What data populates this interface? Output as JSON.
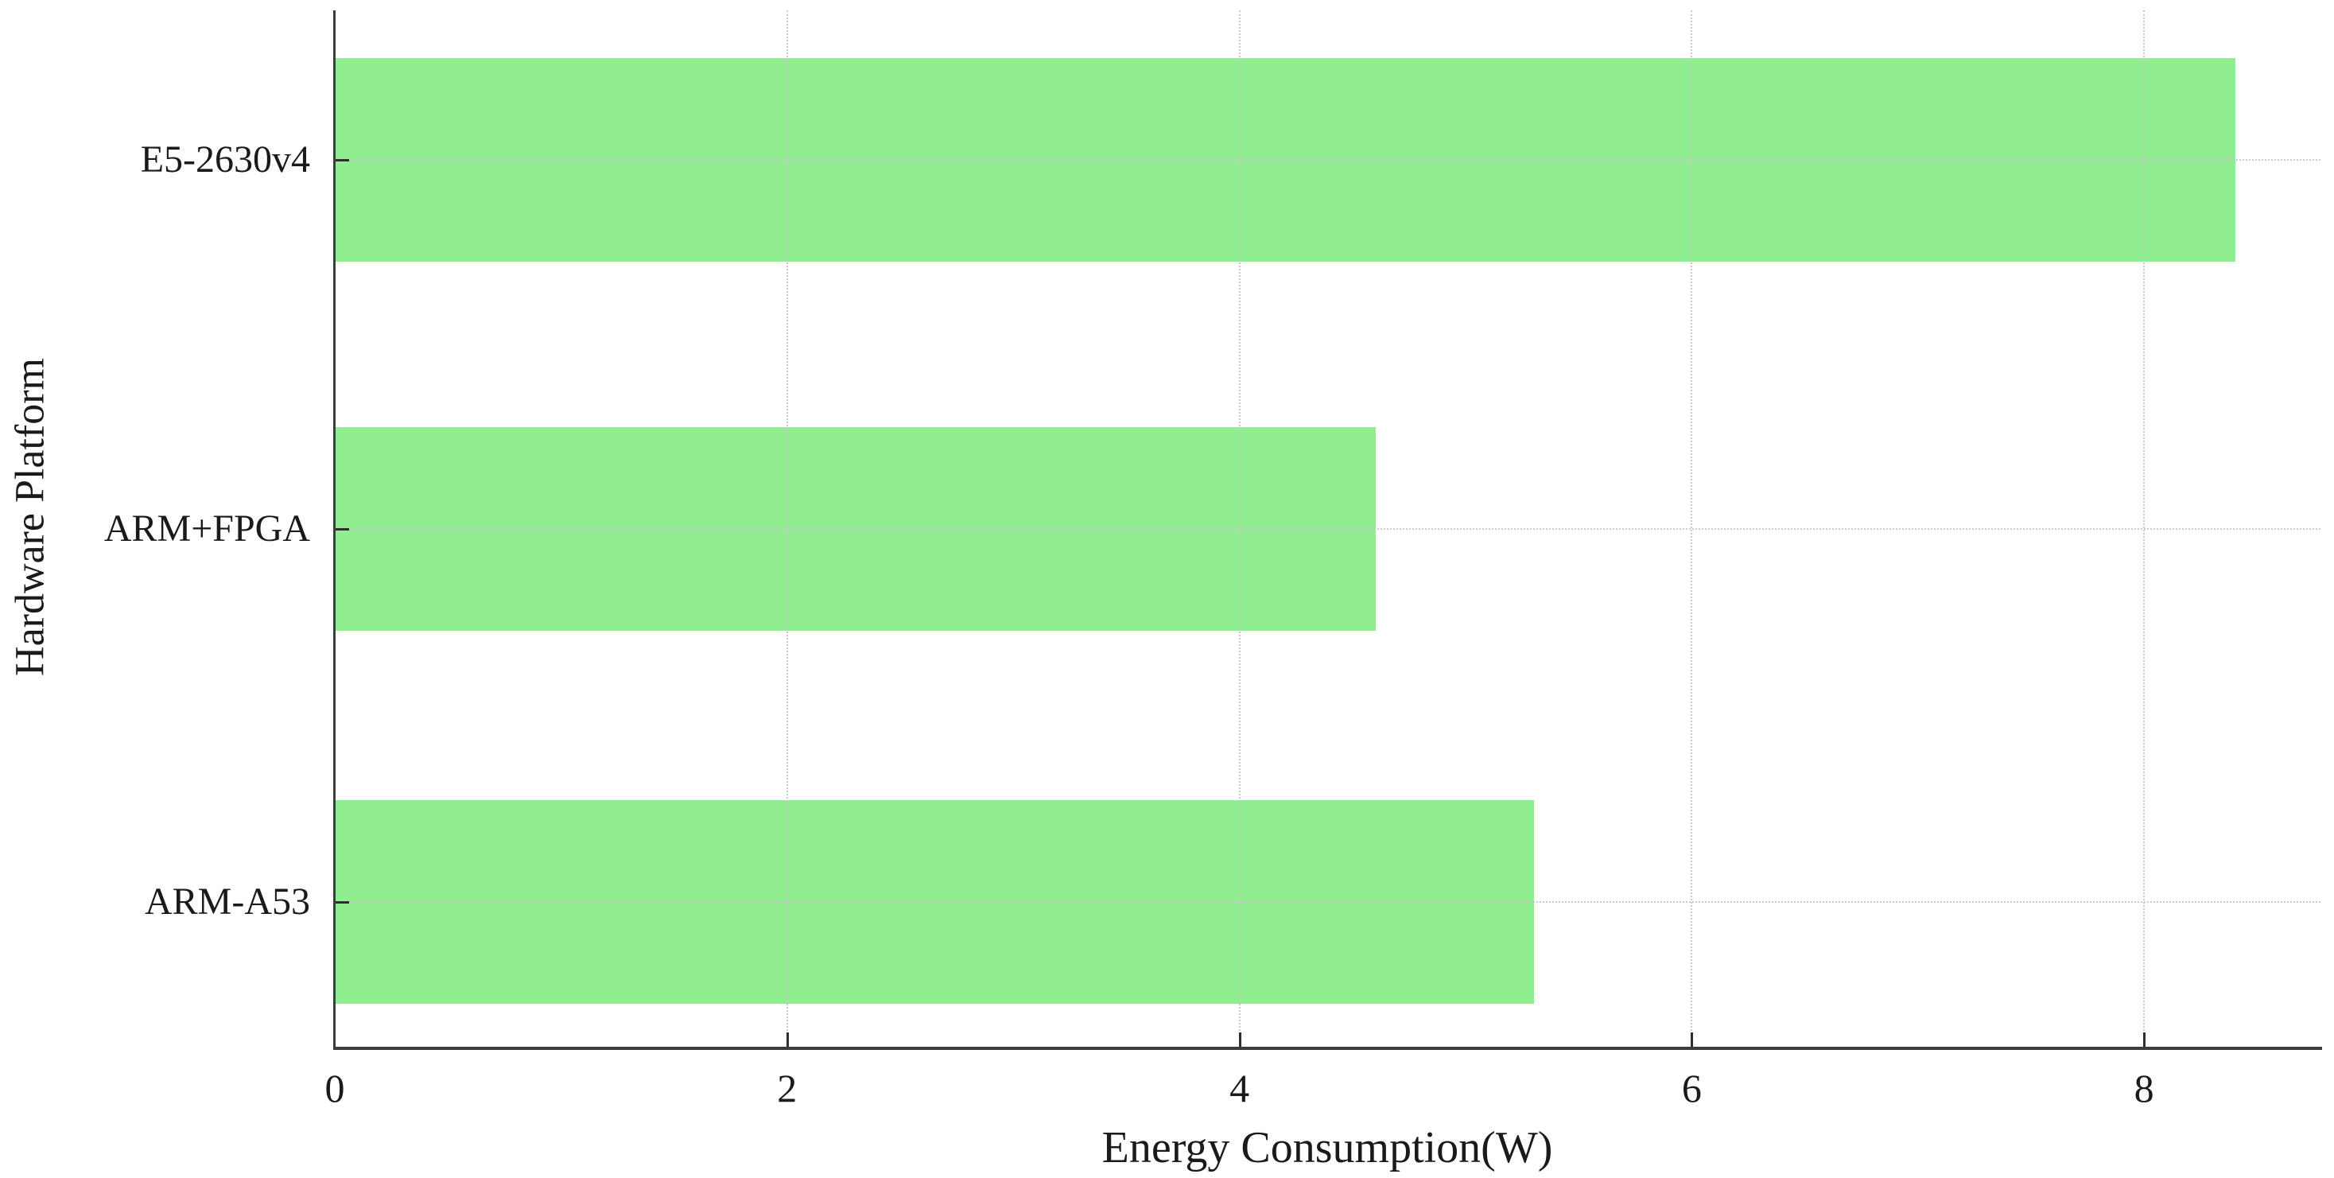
{
  "chart_data": {
    "type": "bar",
    "orientation": "horizontal",
    "categories": [
      "E5-2630v4",
      "ARM+FPGA",
      "ARM-A53"
    ],
    "values": [
      8.4,
      4.6,
      5.3
    ],
    "xlabel": "Energy Consumption(W)",
    "ylabel": "Hardware Platform",
    "xticks": [
      0,
      2,
      4,
      6,
      8
    ],
    "xlim": [
      0,
      8.78
    ],
    "bar_color": "#90EE90",
    "grid": true,
    "grid_style": "dotted",
    "legend_position": "none",
    "title": ""
  }
}
